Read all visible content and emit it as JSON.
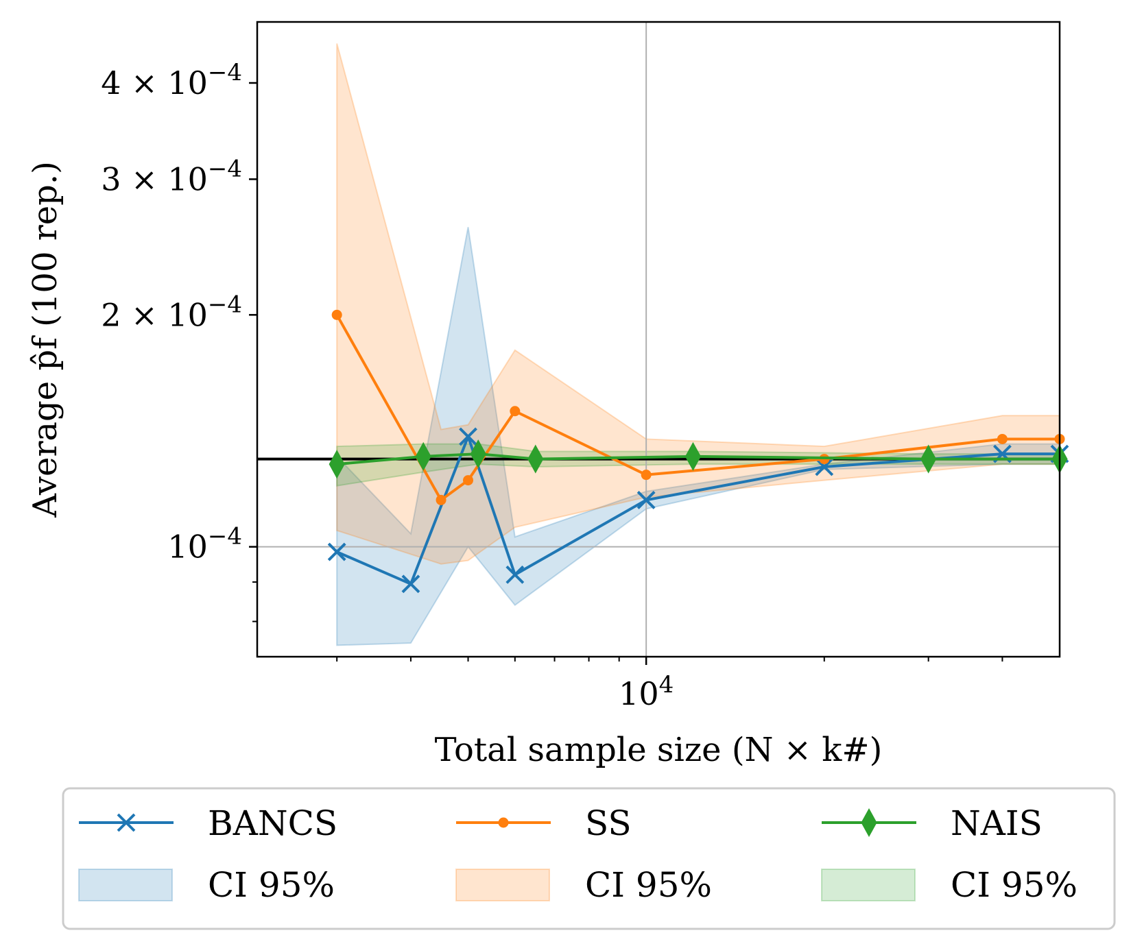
{
  "chart_data": {
    "type": "line",
    "xlabel": "Total sample size (N × k#)",
    "ylabel": "Average p̂f (100 rep.)",
    "x_scale": "log",
    "y_scale": "log",
    "xlim": [
      2200,
      50000
    ],
    "ylim": [
      7.2e-05,
      0.00048
    ],
    "x_ticks": [
      {
        "value": 10000,
        "label": "10^4"
      }
    ],
    "y_ticks": [
      {
        "value": 0.0001,
        "label": "10^−4"
      },
      {
        "value": 0.0002,
        "label": "2 × 10^−4"
      },
      {
        "value": 0.0003,
        "label": "3 × 10^−4"
      },
      {
        "value": 0.0004,
        "label": "4 × 10^−4"
      }
    ],
    "grid": true,
    "reference_line": 0.00013,
    "series": [
      {
        "name": "BANCS",
        "color": "#1f77b4",
        "marker": "x",
        "x": [
          3000,
          4000,
          5000,
          6000,
          10000,
          20000,
          40000,
          60000
        ],
        "y": [
          9.85e-05,
          8.95e-05,
          0.000139,
          9.2e-05,
          0.000115,
          0.000127,
          0.000132,
          0.000132
        ],
        "ci_lower": [
          7.45e-05,
          7.5e-05,
          0.0001,
          8.4e-05,
          0.000112,
          0.000126,
          0.000128,
          0.000128
        ],
        "ci_upper": [
          0.000131,
          0.000104,
          0.00026,
          0.000103,
          0.000118,
          0.000128,
          0.000136,
          0.000136
        ]
      },
      {
        "name": "SS",
        "color": "#ff7f0e",
        "marker": "dot",
        "x": [
          3000,
          4500,
          5000,
          6000,
          10000,
          20000,
          40000,
          60000
        ],
        "y": [
          0.0002,
          0.000115,
          0.000122,
          0.00015,
          0.000124,
          0.00013,
          0.000138,
          0.000138
        ],
        "ci_lower": [
          0.000105,
          9.5e-05,
          9.6e-05,
          0.000106,
          0.000116,
          0.000122,
          0.000128,
          0.000128
        ],
        "ci_upper": [
          0.00045,
          0.000142,
          0.000144,
          0.00018,
          0.000138,
          0.000135,
          0.000148,
          0.000148
        ]
      },
      {
        "name": "NAIS",
        "color": "#2ca02c",
        "marker": "diamond",
        "x": [
          3000,
          4200,
          5200,
          6500,
          12000,
          30000,
          60000
        ],
        "y": [
          0.000128,
          0.000131,
          0.000132,
          0.00013,
          0.000131,
          0.00013,
          0.00013
        ],
        "ci_lower": [
          0.00012,
          0.000125,
          0.000128,
          0.000127,
          0.000128,
          0.000128,
          0.000128
        ],
        "ci_upper": [
          0.000135,
          0.000136,
          0.000136,
          0.000133,
          0.000133,
          0.000132,
          0.000132
        ]
      }
    ],
    "legend": {
      "placement": "below",
      "columns": 3,
      "entries": [
        {
          "label": "BANCS",
          "kind": "line",
          "series": 0
        },
        {
          "label": "SS",
          "kind": "line",
          "series": 1
        },
        {
          "label": "NAIS",
          "kind": "line",
          "series": 2
        },
        {
          "label": "CI 95%",
          "kind": "band",
          "series": 0
        },
        {
          "label": "CI 95%",
          "kind": "band",
          "series": 1
        },
        {
          "label": "CI 95%",
          "kind": "band",
          "series": 2
        }
      ]
    }
  }
}
